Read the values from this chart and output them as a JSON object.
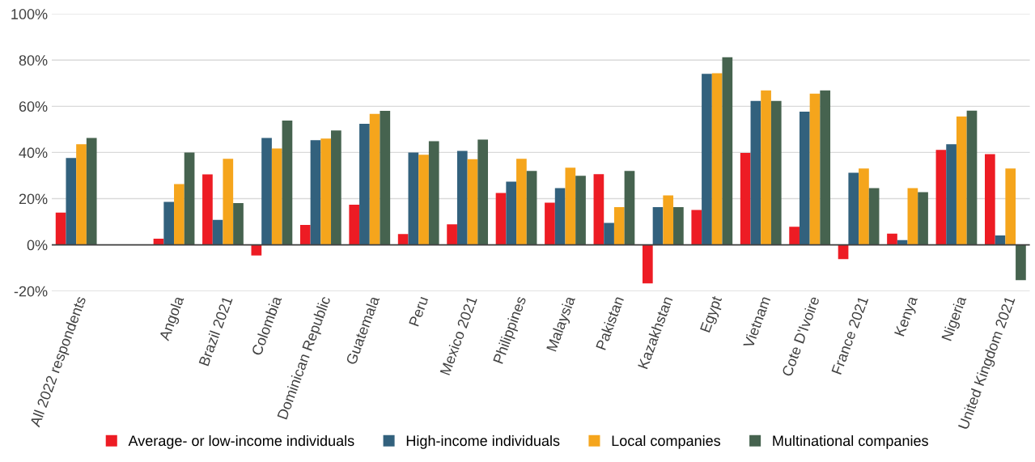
{
  "chart_data": {
    "type": "bar",
    "categories": [
      "All 2022 respondents",
      null,
      "Angola",
      "Brazil 2021",
      "Colombia",
      "Dominican Republic",
      "Guatemala",
      "Peru",
      "Mexico 2021",
      "Philippines",
      "Malaysia",
      "Pakistan",
      "Kazakhstan",
      "Egypt",
      "Vietnam",
      "Cote D'Ivoire",
      "France 2021",
      "Kenya",
      "Nigeria",
      "United Kingdom 2021"
    ],
    "series": [
      {
        "name": "Average- or low-income individuals",
        "color": "#ed1c24",
        "values": [
          14,
          null,
          2.7,
          30.5,
          -4.6,
          8.6,
          17.4,
          4.7,
          8.9,
          22.5,
          18.3,
          30.6,
          -16.7,
          15.1,
          39.8,
          7.8,
          -6.2,
          4.9,
          41.1,
          39.3
        ]
      },
      {
        "name": "High-income individuals",
        "color": "#32617d",
        "values": [
          37.6,
          null,
          18.6,
          10.8,
          46.3,
          45.3,
          52.4,
          40,
          40.7,
          27.4,
          24.6,
          9.5,
          16.3,
          74,
          62.3,
          57.7,
          31.2,
          2.1,
          43.6,
          4.1
        ]
      },
      {
        "name": "Local companies",
        "color": "#f5a51c",
        "values": [
          43.6,
          null,
          26.3,
          37.3,
          41.7,
          46,
          56.7,
          39,
          37.1,
          37.3,
          33.4,
          16.3,
          21.4,
          74.3,
          66.9,
          65.5,
          33.1,
          24.6,
          55.6,
          33.1
        ]
      },
      {
        "name": "Multinational companies",
        "color": "#46634f",
        "values": [
          46.3,
          null,
          40,
          18.1,
          53.8,
          49.5,
          58,
          44.9,
          45.6,
          32,
          29.9,
          32,
          16.3,
          81.2,
          62.3,
          66.9,
          24.6,
          22.8,
          58.1,
          -15.3
        ]
      }
    ],
    "ylim": [
      -20,
      100
    ],
    "yticks": [
      {
        "value": -20,
        "label": "-20%"
      },
      {
        "value": 0,
        "label": "0%"
      },
      {
        "value": 20,
        "label": "20%"
      },
      {
        "value": 40,
        "label": "40%"
      },
      {
        "value": 60,
        "label": "60%"
      },
      {
        "value": 80,
        "label": "80%"
      },
      {
        "value": 100,
        "label": "100%"
      }
    ],
    "grid": "y",
    "legend": "bottom"
  }
}
